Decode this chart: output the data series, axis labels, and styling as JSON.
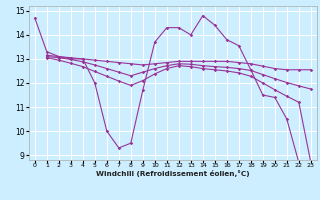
{
  "title": "",
  "xlabel": "Windchill (Refroidissement éolien,°C)",
  "ylabel": "",
  "bg_color": "#cceeff",
  "line_color": "#993399",
  "grid_color": "#ffffff",
  "xlim": [
    -0.5,
    23.5
  ],
  "ylim": [
    8.8,
    15.2
  ],
  "yticks": [
    9,
    10,
    11,
    12,
    13,
    14,
    15
  ],
  "xticks": [
    0,
    1,
    2,
    3,
    4,
    5,
    6,
    7,
    8,
    9,
    10,
    11,
    12,
    13,
    14,
    15,
    16,
    17,
    18,
    19,
    20,
    21,
    22,
    23
  ],
  "line1_x": [
    0,
    1,
    2,
    3,
    4,
    5,
    6,
    7,
    8,
    9,
    10,
    11,
    12,
    13,
    14,
    15,
    16,
    17,
    18,
    19,
    20,
    21,
    22
  ],
  "line1_y": [
    14.7,
    13.3,
    13.1,
    13.0,
    13.0,
    12.0,
    10.0,
    9.3,
    9.5,
    11.7,
    13.7,
    14.3,
    14.3,
    14.0,
    14.8,
    14.4,
    13.8,
    13.55,
    12.55,
    11.5,
    11.4,
    10.5,
    8.7
  ],
  "line2_x": [
    1,
    2,
    3,
    4,
    5,
    6,
    7,
    8,
    9,
    10,
    11,
    12,
    13,
    14,
    15,
    16,
    17,
    18,
    19,
    20,
    21,
    22,
    23
  ],
  "line2_y": [
    13.15,
    13.1,
    13.05,
    13.0,
    12.95,
    12.9,
    12.85,
    12.8,
    12.75,
    12.8,
    12.85,
    12.9,
    12.9,
    12.9,
    12.9,
    12.9,
    12.85,
    12.8,
    12.7,
    12.6,
    12.55,
    12.55,
    12.55
  ],
  "line3_x": [
    1,
    2,
    3,
    4,
    5,
    6,
    7,
    8,
    9,
    10,
    11,
    12,
    13,
    14,
    15,
    16,
    17,
    18,
    19,
    20,
    21,
    22,
    23
  ],
  "line3_y": [
    13.1,
    13.05,
    12.98,
    12.88,
    12.75,
    12.6,
    12.45,
    12.3,
    12.45,
    12.6,
    12.72,
    12.8,
    12.78,
    12.72,
    12.68,
    12.65,
    12.6,
    12.52,
    12.35,
    12.18,
    12.02,
    11.88,
    11.75
  ],
  "line4_x": [
    1,
    2,
    3,
    4,
    5,
    6,
    7,
    8,
    9,
    10,
    11,
    12,
    13,
    14,
    15,
    16,
    17,
    18,
    19,
    20,
    21,
    22,
    23
  ],
  "line4_y": [
    13.05,
    12.95,
    12.82,
    12.68,
    12.48,
    12.28,
    12.08,
    11.9,
    12.1,
    12.38,
    12.6,
    12.72,
    12.68,
    12.6,
    12.55,
    12.5,
    12.42,
    12.28,
    12.0,
    11.72,
    11.45,
    11.2,
    8.7
  ]
}
